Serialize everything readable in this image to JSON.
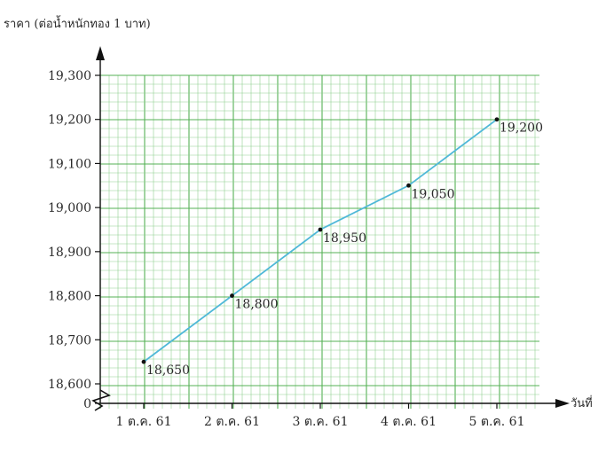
{
  "chart_data": {
    "type": "line",
    "ylabel": "ราคา (ต่อน้ำหนักทอง 1 บาท)",
    "xlabel": "วันที่",
    "categories": [
      "1 ต.ค. 61",
      "2 ต.ค. 61",
      "3 ต.ค. 61",
      "4 ต.ค. 61",
      "5 ต.ค. 61"
    ],
    "values": [
      18650,
      18800,
      18950,
      19050,
      19200
    ],
    "data_labels": [
      "18,650",
      "18,800",
      "18,950",
      "19,050",
      "19,200"
    ],
    "y_ticks": [
      {
        "value": 0,
        "label": "0"
      },
      {
        "value": 18600,
        "label": "18,600"
      },
      {
        "value": 18700,
        "label": "18,700"
      },
      {
        "value": 18800,
        "label": "18,800"
      },
      {
        "value": 18900,
        "label": "18,900"
      },
      {
        "value": 19000,
        "label": "19,000"
      },
      {
        "value": 19100,
        "label": "19,100"
      },
      {
        "value": 19200,
        "label": "19,200"
      },
      {
        "value": 19300,
        "label": "19,300"
      }
    ],
    "ylim": [
      18600,
      19300
    ],
    "axis_break": true,
    "grid": true,
    "colors": {
      "line": "#4fb8d8",
      "grid_minor": "#8fd08f",
      "grid_major": "#55b055",
      "point": "#111111",
      "axis": "#111111"
    }
  }
}
